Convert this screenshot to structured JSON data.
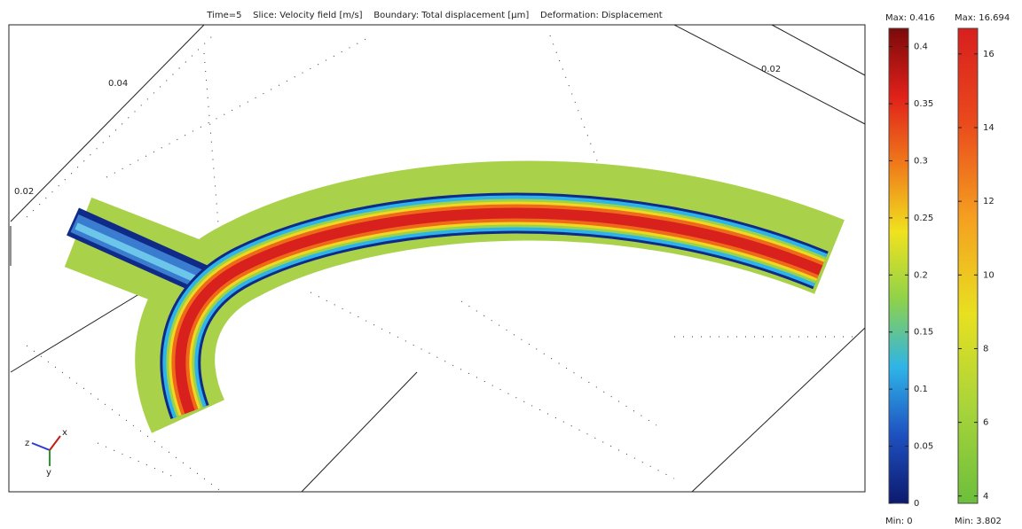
{
  "plot": {
    "title": "Time=5    Slice: Velocity field [m/s]    Boundary: Total displacement [µm]    Deformation: Displacement",
    "axis_labels": [
      "0.04",
      "0.02",
      "0.02"
    ],
    "triad": [
      "z",
      "x",
      "y"
    ]
  },
  "colorbars": [
    {
      "range": {
        "min": {
          "value": 0,
          "label": "Min: 0"
        },
        "max": {
          "value": 0.416,
          "label": "Max: 0.416"
        }
      },
      "ticks": [
        0,
        0.05,
        0.1,
        0.15,
        0.2,
        0.25,
        0.3,
        0.35,
        0.4
      ],
      "colors": [
        "#0c1a6e",
        "#1e50c0",
        "#2eb4e8",
        "#8ed24a",
        "#f0e21e",
        "#f07a1a",
        "#e0201a",
        "#7a0a0a"
      ]
    },
    {
      "range": {
        "min": {
          "value": 3.802,
          "label": "Min: 3.802"
        },
        "max": {
          "value": 16.694,
          "label": "Max: 16.694"
        }
      },
      "ticks": [
        4,
        6,
        8,
        10,
        12,
        14,
        16
      ],
      "colors": [
        "#6cbf3c",
        "#a8d43a",
        "#e8e020",
        "#f5a020",
        "#ea4a1c",
        "#d81e1e"
      ]
    }
  ]
}
